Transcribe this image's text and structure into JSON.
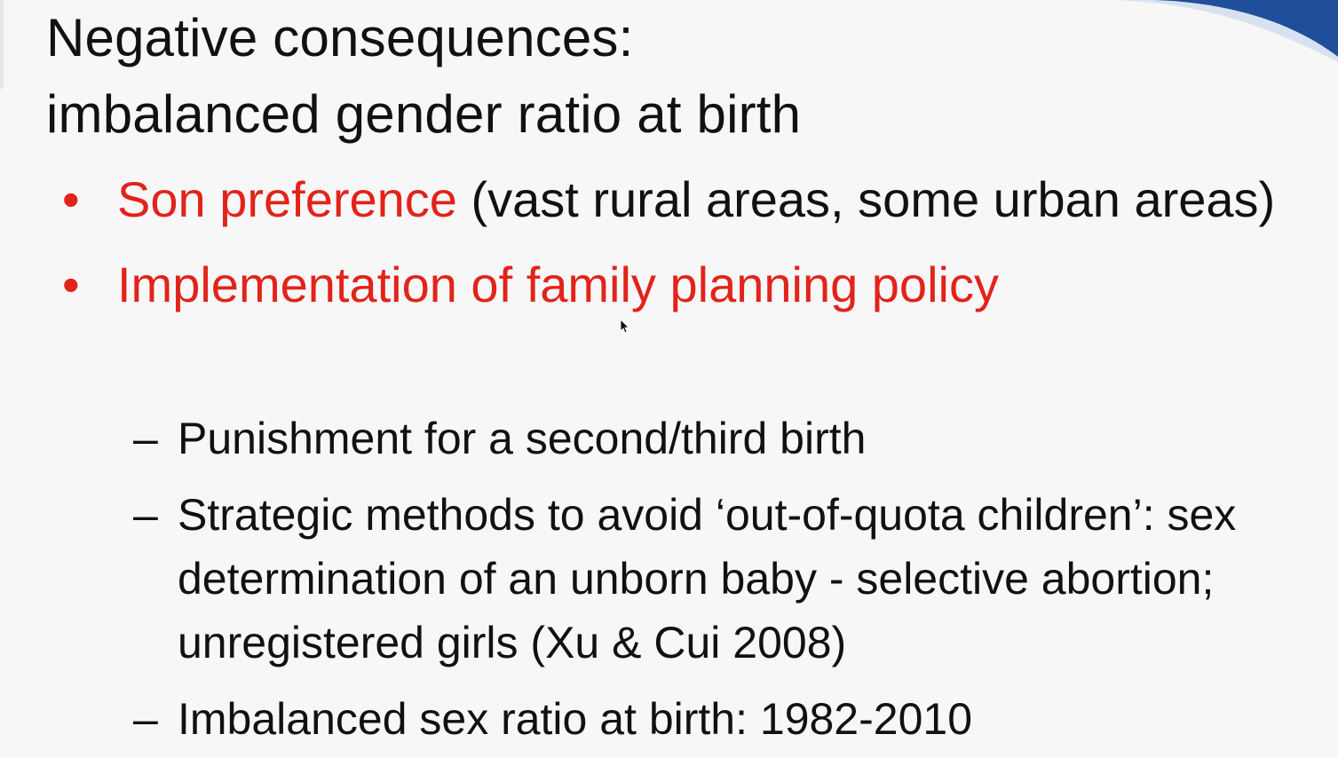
{
  "slide": {
    "title_line1": "Negative consequences:",
    "title_line2": "imbalanced gender ratio at birth",
    "bullets": [
      {
        "highlight": "Son preference",
        "rest": " (vast rural areas, some urban areas)"
      },
      {
        "highlight": "Implementation of family planning policy",
        "rest": ""
      }
    ],
    "sub_items": [
      "Punishment for a second/third birth",
      "Strategic methods to avoid ‘out-of-quota children’: sex determination of an unborn baby - selective abortion; unregistered girls (Xu & Cui 2008)",
      "Imbalanced sex ratio at birth: 1982-2010"
    ],
    "bullet_glyph": "•",
    "dash_glyph": "–"
  },
  "colors": {
    "accent_red": "#e2231a",
    "deco_blue": "#1f4e9b",
    "text": "#111111",
    "background": "#f7f7f7"
  },
  "icons": {
    "cursor": "mouse-pointer-icon",
    "decoration": "blue-swoosh-decoration"
  }
}
